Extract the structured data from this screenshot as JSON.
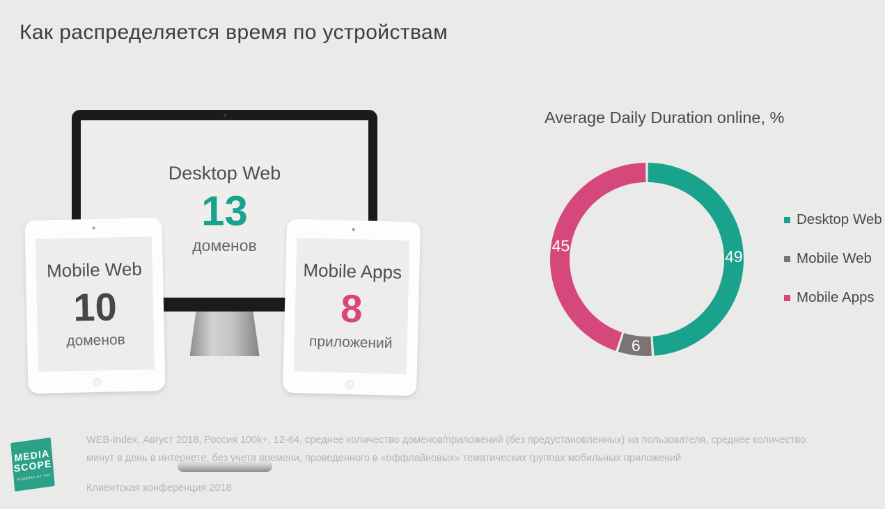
{
  "slide": {
    "title": "Как распределяется время по устройствам"
  },
  "devices": {
    "desktop": {
      "label": "Desktop Web",
      "value": "13",
      "unit": "доменов",
      "value_color": "#1AA38C"
    },
    "mobile_web": {
      "label": "Mobile Web",
      "value": "10",
      "unit": "доменов",
      "value_color": "#474747"
    },
    "mobile_apps": {
      "label": "Mobile Apps",
      "value": "8",
      "unit": "приложений",
      "value_color": "#D6477B"
    }
  },
  "chart_data": {
    "type": "pie",
    "subtype": "donut",
    "title": "Average Daily Duration online, %",
    "categories": [
      "Desktop Web",
      "Mobile Web",
      "Mobile Apps"
    ],
    "values": [
      49,
      6,
      45
    ],
    "colors": [
      "#1AA38C",
      "#7B7475",
      "#D6477B"
    ],
    "label_color": "#FFFFFF",
    "start_angle_deg": 0,
    "direction": "clockwise",
    "legend_position": "right"
  },
  "footer": {
    "logo": {
      "line1": "MEDIA",
      "line2": "SCOPE",
      "tagline": "POWERED BY TNS",
      "color": "#2BA18A"
    },
    "source_text": "WEB-Index, Август 2018, Россия 100k+, 12-64, среднее количество доменов/приложений (без предустановленных) на пользователя, среднее количество минут в день в интернете, без учета времени, проведенного в «оффлайновых» тематических группах мобильных приложений",
    "conference": "Клиентская конференция 2018"
  }
}
